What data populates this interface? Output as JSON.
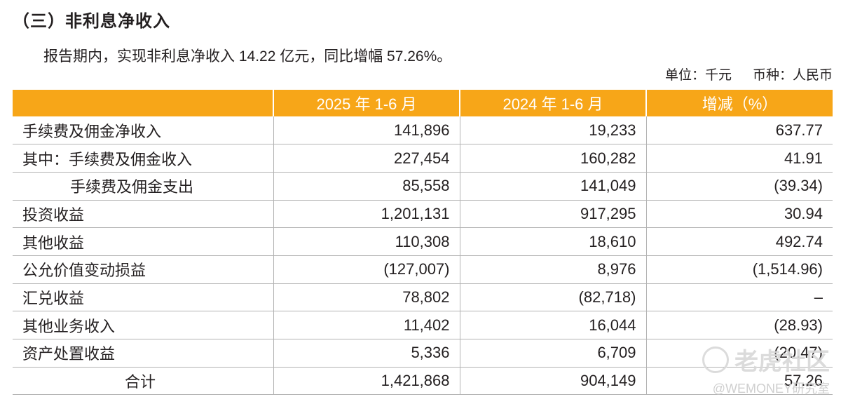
{
  "section": {
    "title": "（三）非利息净收入",
    "summary": "报告期内，实现非利息净收入 14.22 亿元，同比增幅 57.26%。",
    "unit": "单位：千元",
    "currency": "币种：人民币"
  },
  "table": {
    "headers": [
      "",
      "2025 年 1-6 月",
      "2024 年 1-6 月",
      "增减（%）"
    ],
    "rows": [
      [
        "手续费及佣金净收入",
        "141,896",
        "19,233",
        "637.77"
      ],
      [
        "其中：手续费及佣金收入",
        "227,454",
        "160,282",
        "41.91"
      ],
      [
        "手续费及佣金支出",
        "85,558",
        "141,049",
        "(39.34)"
      ],
      [
        "投资收益",
        "1,201,131",
        "917,295",
        "30.94"
      ],
      [
        "其他收益",
        "110,308",
        "18,610",
        "492.74"
      ],
      [
        "公允价值变动损益",
        "(127,007)",
        "8,976",
        "(1,514.96)"
      ],
      [
        "汇兑收益",
        "78,802",
        "(82,718)",
        "–"
      ],
      [
        "其他业务收入",
        "11,402",
        "16,044",
        "(28.93)"
      ],
      [
        "资产处置收益",
        "5,336",
        "6,709",
        "(20.47)"
      ],
      [
        "合计",
        "1,421,868",
        "904,149",
        "57.26"
      ]
    ]
  },
  "watermark": {
    "text": "老虎社区",
    "handle": "@WEMONEY研究室"
  },
  "colors": {
    "header_bg": "#f7a618",
    "header_text": "#ffffff",
    "rule": "#b3b3b3"
  }
}
